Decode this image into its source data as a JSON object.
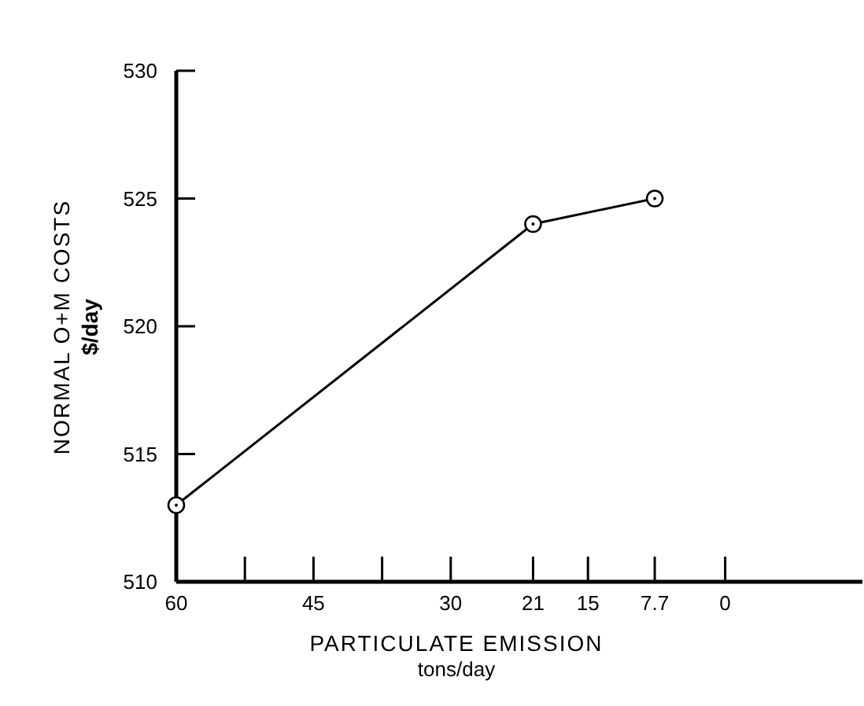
{
  "chart_data": {
    "type": "line",
    "xlabel": "PARTICULATE EMISSION\ntons/day",
    "ylabel": "NORMAL O+M COSTS\n$/day",
    "x": [
      60,
      21,
      7.7
    ],
    "series": [
      {
        "color": "#000000",
        "values": [
          513,
          524,
          525
        ]
      }
    ],
    "xlim": [
      60,
      -15
    ],
    "xticks": [
      60,
      {
        "value": 52.5,
        "label": null
      },
      45,
      {
        "value": 37.5,
        "label": null
      },
      30,
      21,
      15,
      7.7,
      0
    ],
    "ylim": [
      510,
      530
    ],
    "yticks": [
      510,
      515,
      520,
      525,
      530
    ],
    "marker": "circle",
    "line_style": "solid",
    "grid": false
  }
}
